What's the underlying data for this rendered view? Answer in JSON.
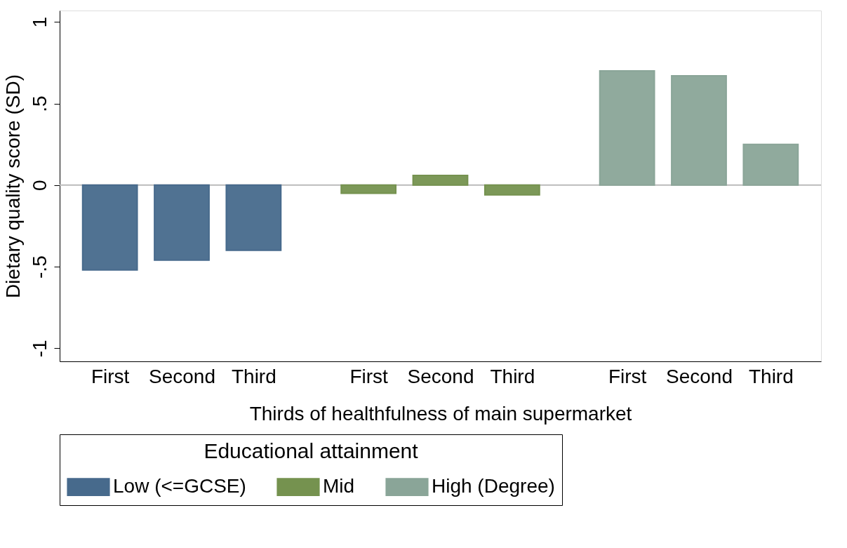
{
  "chart_data": {
    "type": "bar",
    "xlabel": "Thirds of healthfulness of main supermarket",
    "ylabel": "Dietary quality score (SD)",
    "legend_title": "Educational attainment",
    "categories": [
      "First",
      "Second",
      "Third",
      "First",
      "Second",
      "Third",
      "First",
      "Second",
      "Third"
    ],
    "series": [
      {
        "name": "Low (<=GCSE)",
        "color": "#476a8c",
        "values": [
          -0.52,
          -0.46,
          -0.4,
          null,
          null,
          null,
          null,
          null,
          null
        ]
      },
      {
        "name": "Mid",
        "color": "#75924f",
        "values": [
          null,
          null,
          null,
          -0.05,
          0.06,
          -0.06,
          null,
          null,
          null
        ]
      },
      {
        "name": "High (Degree)",
        "color": "#8aa598",
        "values": [
          null,
          null,
          null,
          null,
          null,
          null,
          0.7,
          0.67,
          0.25
        ]
      }
    ],
    "ylim": [
      -1.08,
      1.07
    ],
    "yticks": [
      {
        "value": -1,
        "label": "-1"
      },
      {
        "value": -0.5,
        "label": "-.5"
      },
      0,
      {
        "value": 0.5,
        "label": ".5"
      },
      1
    ],
    "ref_lines": [
      {
        "axis": "y",
        "value": 0,
        "color": "#bbbbbb"
      }
    ],
    "grid": false,
    "legend": "bottom"
  }
}
